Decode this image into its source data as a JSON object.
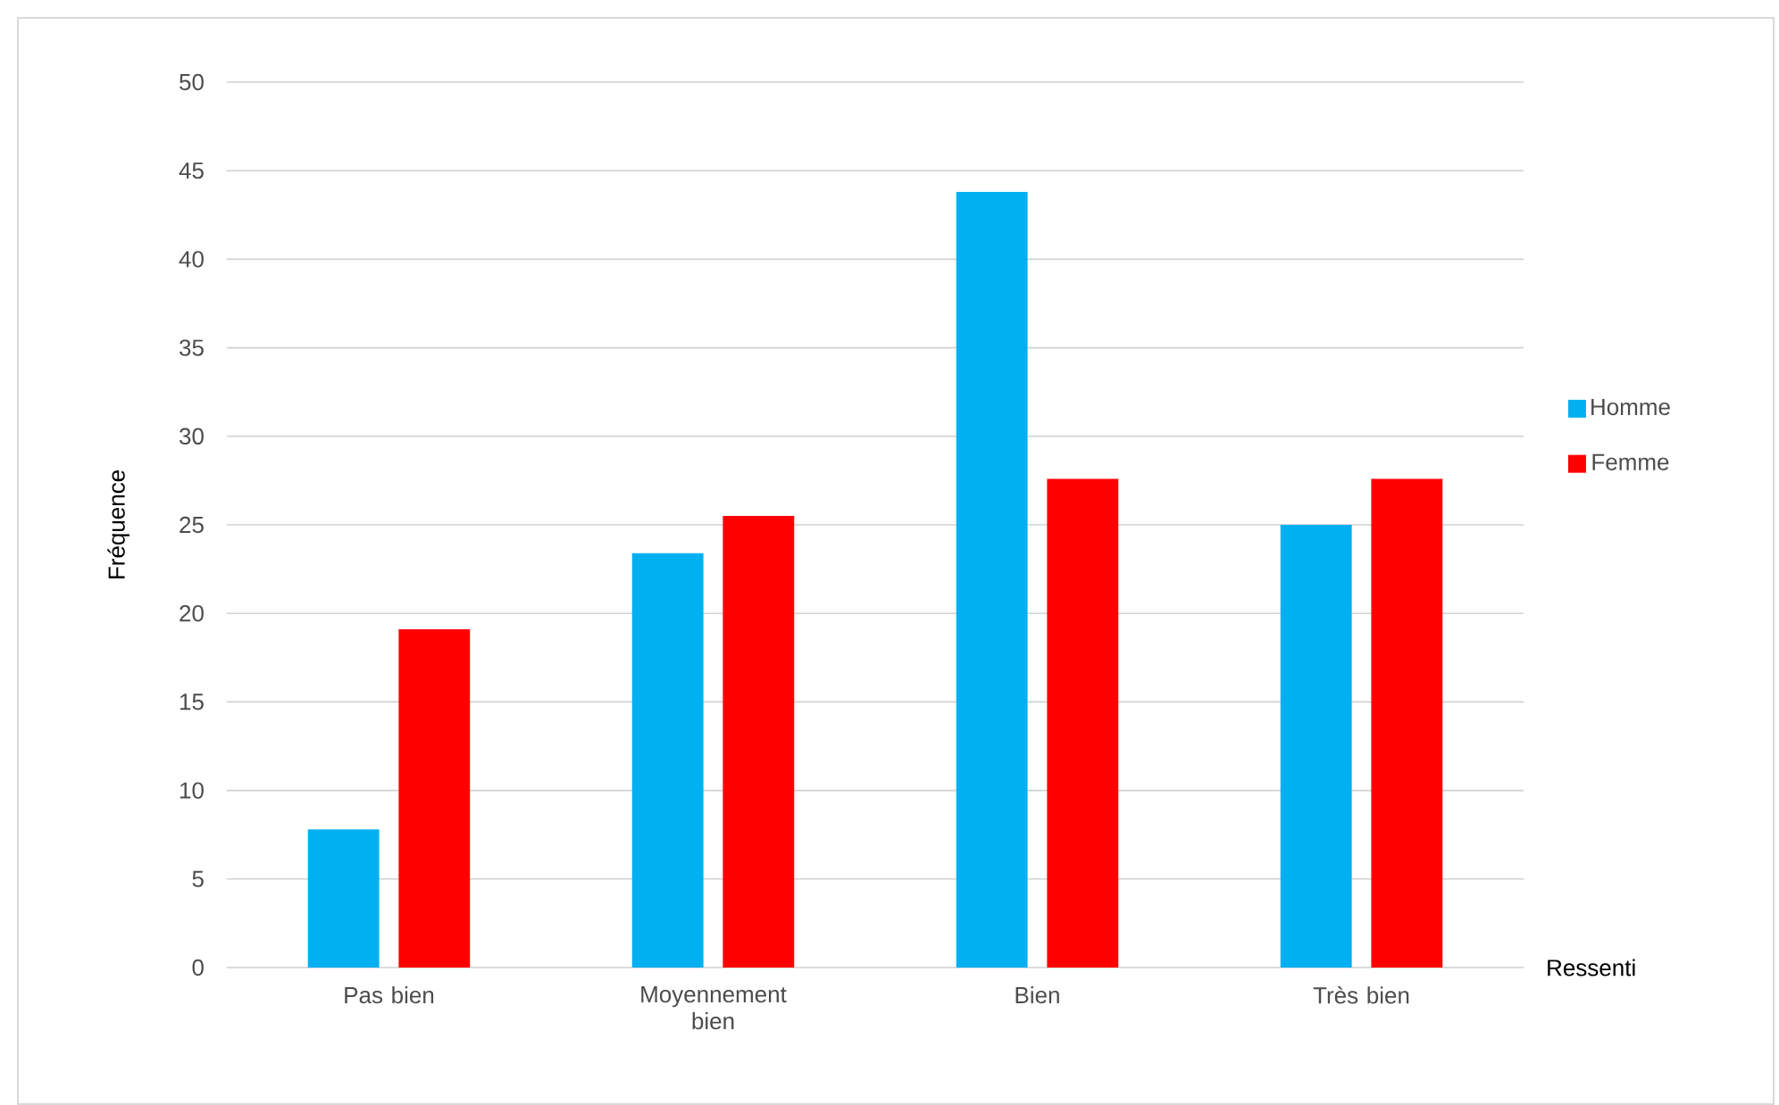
{
  "chart_data": {
    "type": "bar",
    "xlabel": "Ressenti",
    "ylabel": "Fréquence",
    "categories": [
      "Pas bien",
      "Moyennement bien",
      "Bien",
      "Très bien"
    ],
    "series": [
      {
        "name": "Homme",
        "color": "#00b0f0",
        "values": [
          7.8,
          23.4,
          43.8,
          25.0
        ]
      },
      {
        "name": "Femme",
        "color": "#ff0000",
        "values": [
          19.1,
          25.5,
          27.6,
          27.6
        ]
      }
    ],
    "ylim": [
      0,
      50
    ],
    "yticks": [
      0,
      5,
      10,
      15,
      20,
      25,
      30,
      35,
      40,
      45,
      50
    ],
    "grid": "y",
    "legend": "right"
  }
}
